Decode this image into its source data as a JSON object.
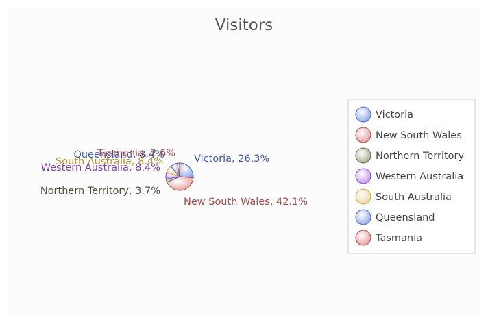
{
  "chart_data": {
    "type": "pie",
    "title": "Visitors",
    "legend_position": "right",
    "slices": [
      {
        "name": "Victoria",
        "label": "Victoria, 26.3%",
        "value": 26.3,
        "color": "#8fa7ea"
      },
      {
        "name": "New South Wales",
        "label": "New South Wales, 42.1%",
        "value": 42.1,
        "color": "#e59a9a"
      },
      {
        "name": "Northern Territory",
        "label": "Northern Territory, 3.7%",
        "value": 3.7,
        "color": "#9eaa8e"
      },
      {
        "name": "Western Australia",
        "label": "Western Australia, 8.4%",
        "value": 8.4,
        "color": "#c496ec"
      },
      {
        "name": "South Australia",
        "label": "South Australia, 8.4%",
        "value": 8.4,
        "color": "#eed69a"
      },
      {
        "name": "Queensland",
        "label": "Queensland, 8.4%",
        "value": 8.4,
        "color": "#8fa7ea"
      },
      {
        "name": "Tasmania",
        "label": "Tasmania, 2.6%",
        "value": 2.6,
        "color": "#e59a9a"
      }
    ],
    "label_colors": [
      "#3e5aa8",
      "#a84848",
      "#4a5540",
      "#7a3fb0",
      "#b0943a",
      "#3e5aa8",
      "#a84848"
    ],
    "stroke_colors": [
      "#4a66c4",
      "#b04a4a",
      "#5a6a4a",
      "#8a4ad0",
      "#c8a24a",
      "#4a66c4",
      "#b04a4a"
    ]
  }
}
